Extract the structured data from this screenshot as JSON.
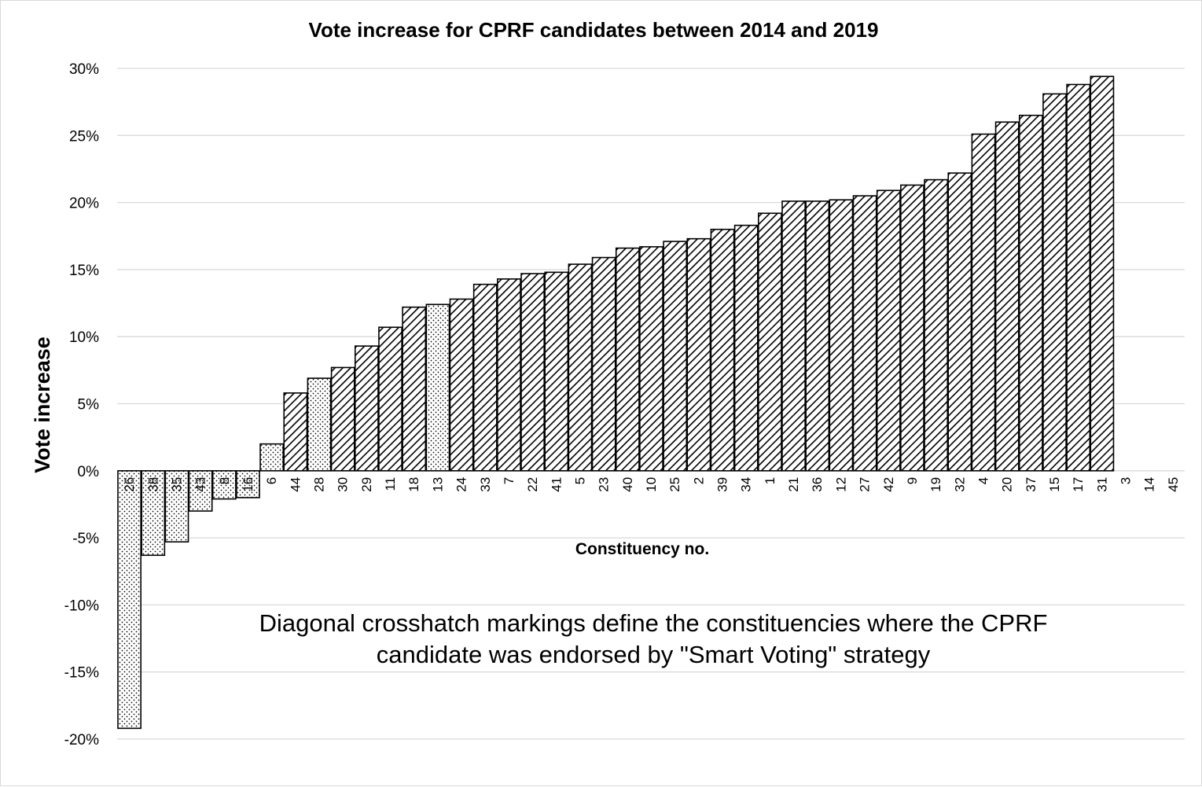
{
  "chart_data": {
    "type": "bar",
    "title": "Vote increase for CPRF candidates between 2014 and 2019",
    "xlabel": "Constituency no.",
    "ylabel": "Vote increase",
    "ylim": [
      -0.2,
      0.3
    ],
    "yticks": [
      0.3,
      0.25,
      0.2,
      0.15,
      0.1,
      0.05,
      0,
      -0.05,
      -0.1,
      -0.15,
      -0.2
    ],
    "ytick_labels": [
      "30%",
      "25%",
      "20%",
      "15%",
      "10%",
      "5%",
      "0%",
      "-5%",
      "-10%",
      "-15%",
      "-20%"
    ],
    "grid": true,
    "legend": "none",
    "annotation_lines": [
      "Diagonal crosshatch markings define the constituencies where the CPRF",
      "candidate was endorsed by \"Smart Voting\" strategy"
    ],
    "categories": [
      "26",
      "38",
      "35",
      "43",
      "8",
      "16",
      "6",
      "44",
      "28",
      "30",
      "29",
      "11",
      "18",
      "13",
      "24",
      "33",
      "7",
      "22",
      "41",
      "5",
      "23",
      "40",
      "10",
      "25",
      "2",
      "39",
      "34",
      "1",
      "21",
      "36",
      "12",
      "27",
      "42",
      "9",
      "19",
      "32",
      "4",
      "20",
      "37",
      "15",
      "17",
      "31",
      "3",
      "14",
      "45"
    ],
    "values": [
      -0.192,
      -0.063,
      -0.053,
      -0.03,
      -0.021,
      -0.02,
      0.02,
      0.058,
      0.069,
      0.077,
      0.093,
      0.107,
      0.122,
      0.124,
      0.128,
      0.139,
      0.143,
      0.147,
      0.148,
      0.154,
      0.159,
      0.166,
      0.167,
      0.171,
      0.173,
      0.18,
      0.183,
      0.192,
      0.201,
      0.201,
      0.202,
      0.205,
      0.209,
      0.213,
      0.217,
      0.222,
      0.251,
      0.26,
      0.265,
      0.281,
      0.288,
      0.294,
      null,
      null,
      null
    ],
    "endorsed": [
      false,
      false,
      false,
      false,
      false,
      false,
      false,
      true,
      false,
      true,
      true,
      true,
      true,
      false,
      true,
      true,
      true,
      true,
      true,
      true,
      true,
      true,
      true,
      true,
      true,
      true,
      true,
      true,
      true,
      true,
      true,
      true,
      true,
      true,
      true,
      true,
      true,
      true,
      true,
      true,
      true,
      true,
      false,
      false,
      false
    ],
    "colors": {
      "fill": "#ffffff",
      "stroke": "#000000",
      "grid": "#d9d9d9",
      "pattern": "#000000"
    }
  }
}
